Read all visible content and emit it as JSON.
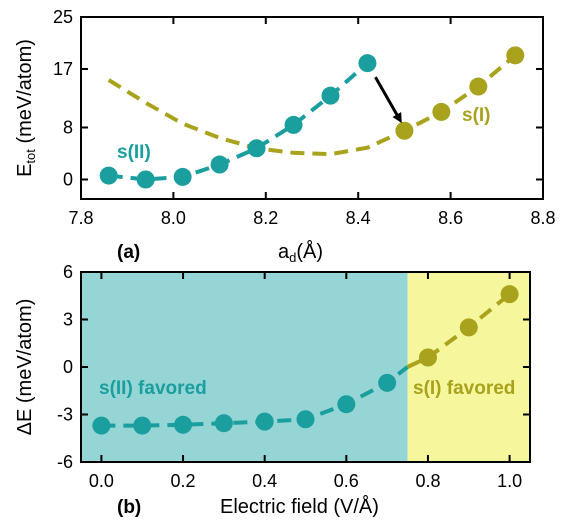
{
  "chart_data": [
    {
      "type": "line",
      "panel_label": "(a)",
      "xlabel": "a",
      "xlabel_sub": "d",
      "xlabel_unit": "(Å)",
      "ylabel": "E",
      "ylabel_sub": "tot",
      "ylabel_unit": " (meV/atom)",
      "xlim": [
        7.8,
        8.8
      ],
      "ylim": [
        -3,
        25
      ],
      "xticks": [
        "7.8",
        "8.0",
        "8.2",
        "8.4",
        "8.6",
        "8.8"
      ],
      "xtick_values": [
        7.8,
        8.0,
        8.2,
        8.4,
        8.6,
        8.8
      ],
      "yticks": [
        "0",
        "8",
        "17",
        "25"
      ],
      "ytick_values": [
        0,
        8,
        17,
        25
      ],
      "series": [
        {
          "name": "s(II)",
          "color": "#1a9e9e",
          "x": [
            7.86,
            7.94,
            8.02,
            8.1,
            8.18,
            8.26,
            8.34,
            8.42
          ],
          "y": [
            0.6,
            0.0,
            0.4,
            2.3,
            4.8,
            8.4,
            12.9,
            17.9
          ],
          "fit_x": [
            7.86,
            7.94,
            8.02,
            8.1,
            8.18,
            8.26,
            8.34,
            8.42
          ],
          "fit_y": [
            0.6,
            0.0,
            0.4,
            2.3,
            4.8,
            8.4,
            12.9,
            17.9
          ]
        },
        {
          "name": "s(I)",
          "color": "#a8a21c",
          "x": [
            8.5,
            8.58,
            8.66,
            8.74
          ],
          "y": [
            7.5,
            10.4,
            14.3,
            19.1
          ],
          "fit_x": [
            7.86,
            7.94,
            8.02,
            8.1,
            8.18,
            8.26,
            8.34,
            8.42,
            8.5,
            8.58,
            8.66,
            8.74
          ],
          "fit_y": [
            15.3,
            11.8,
            8.6,
            6.4,
            4.8,
            4.1,
            3.9,
            4.9,
            7.5,
            10.4,
            14.3,
            19.1
          ]
        }
      ],
      "annotations": [
        {
          "text": "s(II)",
          "color": "#1a9e9e"
        },
        {
          "text": "s(I)",
          "color": "#a8a21c"
        }
      ],
      "arrow": {
        "from": [
          8.42,
          17.9
        ],
        "to": [
          8.49,
          9.2
        ]
      }
    },
    {
      "type": "line",
      "panel_label": "(b)",
      "xlabel": "Electric field (V/Å)",
      "ylabel": "ΔE (meV/atom)",
      "xlim": [
        -0.05,
        1.05
      ],
      "ylim": [
        -6,
        6
      ],
      "xticks": [
        "0.0",
        "0.2",
        "0.4",
        "0.6",
        "0.8",
        "1.0"
      ],
      "xtick_values": [
        0.0,
        0.2,
        0.4,
        0.6,
        0.8,
        1.0
      ],
      "yticks": [
        "-6",
        "-3",
        "0",
        "3",
        "6"
      ],
      "ytick_values": [
        -6,
        -3,
        0,
        3,
        6
      ],
      "regions": [
        {
          "label": "s(II) favored",
          "x_from": -0.05,
          "x_to": 0.75,
          "color": "#96d5d5",
          "text_color": "#1a9e9e"
        },
        {
          "label": "s(I) favored",
          "x_from": 0.75,
          "x_to": 1.05,
          "color": "#f6f69c",
          "text_color": "#a8a21c"
        }
      ],
      "series": [
        {
          "name": "s(II)",
          "color": "#1a9e9e",
          "x": [
            0.0,
            0.1,
            0.2,
            0.3,
            0.4,
            0.5,
            0.6,
            0.7
          ],
          "y": [
            -3.7,
            -3.7,
            -3.65,
            -3.55,
            -3.45,
            -3.3,
            -2.35,
            -1.0
          ]
        },
        {
          "name": "s(I)",
          "color": "#a8a21c",
          "x": [
            0.75,
            0.8,
            0.9,
            1.0
          ],
          "y": [
            0.0,
            0.6,
            2.5,
            4.6
          ],
          "marker_x": [
            0.8,
            0.9,
            1.0
          ],
          "marker_y": [
            0.6,
            2.5,
            4.6
          ]
        }
      ]
    }
  ]
}
